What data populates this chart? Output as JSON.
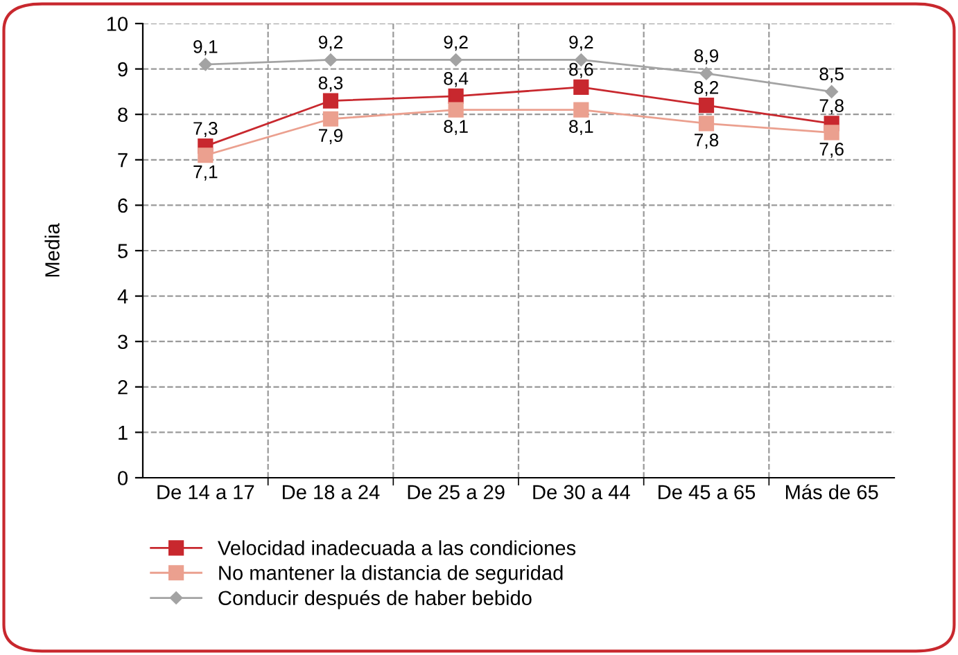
{
  "chart_data": {
    "type": "line",
    "ylabel": "Media",
    "categories": [
      "De 14 a 17",
      "De 18 a 24",
      "De 25 a 29",
      "De 30 a 44",
      "De 45 a 65",
      "Más de 65"
    ],
    "series": [
      {
        "name": "Velocidad inadecuada a las condiciones",
        "color": "#c8282e",
        "marker": "square",
        "values": [
          7.3,
          8.3,
          8.4,
          8.6,
          8.2,
          7.8
        ],
        "value_labels": [
          "7,3",
          "8,3",
          "8,4",
          "8,6",
          "8,2",
          "7,8"
        ]
      },
      {
        "name": "No mantener la distancia de seguridad",
        "color": "#eba08f",
        "marker": "square",
        "values": [
          7.1,
          7.9,
          8.1,
          8.1,
          7.8,
          7.6
        ],
        "value_labels": [
          "7,1",
          "7,9",
          "8,1",
          "8,1",
          "7,8",
          "7,6"
        ]
      },
      {
        "name": "Conducir después de haber bebido",
        "color": "#a3a3a3",
        "marker": "diamond",
        "values": [
          9.1,
          9.2,
          9.2,
          9.2,
          8.9,
          8.5
        ],
        "value_labels": [
          "9,1",
          "9,2",
          "9,2",
          "9,2",
          "8,9",
          "8,5"
        ]
      }
    ],
    "ylim": [
      0,
      10
    ],
    "yticks": [
      0,
      1,
      2,
      3,
      4,
      5,
      6,
      7,
      8,
      9,
      10
    ],
    "grid": true,
    "legend": "bottom",
    "line_style": "solid"
  }
}
